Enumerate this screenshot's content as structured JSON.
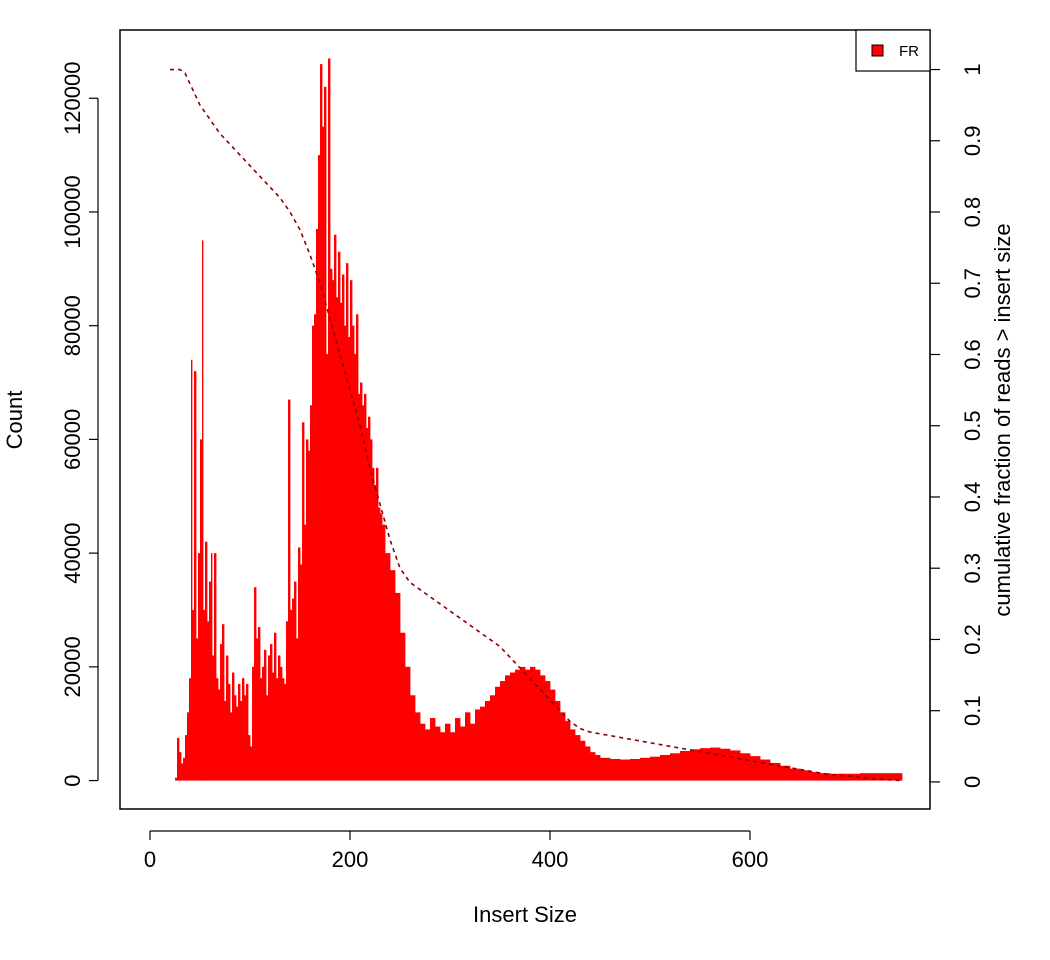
{
  "chart_data": {
    "type": "bar",
    "xlabel": "Insert Size",
    "ylabel": "Count",
    "y2label": "cumulative fraction of reads > insert size",
    "xlim": [
      -30,
      780
    ],
    "ylim": [
      -5000,
      132000
    ],
    "y2lim": [
      -0.038,
      1.0555
    ],
    "xticks": [
      0,
      200,
      400,
      600
    ],
    "yticks": [
      0,
      20000,
      40000,
      60000,
      80000,
      100000,
      120000
    ],
    "y2ticks": [
      0,
      0.1,
      0.2,
      0.3,
      0.4,
      0.5,
      0.6,
      0.7,
      0.8,
      0.9,
      1
    ],
    "grid": false,
    "legend": {
      "position": "top-right",
      "entries": [
        {
          "label": "FR",
          "color": "#ff0000"
        }
      ]
    },
    "colors": {
      "bars": "#ff0000",
      "cumulative_line": "#8b0000",
      "frame": "#000000"
    },
    "series": [
      {
        "name": "FR",
        "kind": "histogram",
        "points": [
          [
            20,
            0
          ],
          [
            25,
            500
          ],
          [
            27,
            7500
          ],
          [
            29,
            5000
          ],
          [
            31,
            3000
          ],
          [
            33,
            4000
          ],
          [
            35,
            8000
          ],
          [
            37,
            12000
          ],
          [
            39,
            18000
          ],
          [
            41,
            74000
          ],
          [
            42,
            30000
          ],
          [
            44,
            72000
          ],
          [
            46,
            25000
          ],
          [
            48,
            40000
          ],
          [
            50,
            60000
          ],
          [
            52,
            95000
          ],
          [
            53,
            30000
          ],
          [
            55,
            42000
          ],
          [
            57,
            28000
          ],
          [
            59,
            35000
          ],
          [
            61,
            40000
          ],
          [
            62,
            22000
          ],
          [
            64,
            40000
          ],
          [
            66,
            18000
          ],
          [
            68,
            16000
          ],
          [
            70,
            24000
          ],
          [
            72,
            27500
          ],
          [
            74,
            14000
          ],
          [
            76,
            22000
          ],
          [
            78,
            17000
          ],
          [
            80,
            12000
          ],
          [
            82,
            19000
          ],
          [
            84,
            15000
          ],
          [
            86,
            13000
          ],
          [
            88,
            17000
          ],
          [
            90,
            14000
          ],
          [
            92,
            18000
          ],
          [
            94,
            15000
          ],
          [
            96,
            17000
          ],
          [
            98,
            8000
          ],
          [
            100,
            6000
          ],
          [
            102,
            20000
          ],
          [
            104,
            34000
          ],
          [
            106,
            25000
          ],
          [
            108,
            27000
          ],
          [
            110,
            18000
          ],
          [
            112,
            20000
          ],
          [
            114,
            23000
          ],
          [
            116,
            15000
          ],
          [
            118,
            22000
          ],
          [
            120,
            24000
          ],
          [
            122,
            19000
          ],
          [
            124,
            26000
          ],
          [
            126,
            18000
          ],
          [
            128,
            22000
          ],
          [
            130,
            20000
          ],
          [
            132,
            18000
          ],
          [
            134,
            17000
          ],
          [
            136,
            28000
          ],
          [
            138,
            67000
          ],
          [
            140,
            30000
          ],
          [
            142,
            32000
          ],
          [
            144,
            35000
          ],
          [
            146,
            25000
          ],
          [
            148,
            41000
          ],
          [
            150,
            38000
          ],
          [
            152,
            63000
          ],
          [
            154,
            45000
          ],
          [
            156,
            60000
          ],
          [
            158,
            58000
          ],
          [
            160,
            66000
          ],
          [
            162,
            80000
          ],
          [
            164,
            82000
          ],
          [
            166,
            97000
          ],
          [
            168,
            110000
          ],
          [
            170,
            126000
          ],
          [
            172,
            115000
          ],
          [
            174,
            122000
          ],
          [
            176,
            75000
          ],
          [
            178,
            127000
          ],
          [
            180,
            90000
          ],
          [
            182,
            88000
          ],
          [
            184,
            96000
          ],
          [
            186,
            85000
          ],
          [
            188,
            93000
          ],
          [
            190,
            84000
          ],
          [
            192,
            89000
          ],
          [
            194,
            80000
          ],
          [
            196,
            91000
          ],
          [
            198,
            78000
          ],
          [
            200,
            88000
          ],
          [
            202,
            80000
          ],
          [
            204,
            75000
          ],
          [
            206,
            82000
          ],
          [
            208,
            68000
          ],
          [
            210,
            70000
          ],
          [
            212,
            66000
          ],
          [
            214,
            68000
          ],
          [
            216,
            62000
          ],
          [
            218,
            64000
          ],
          [
            220,
            60000
          ],
          [
            222,
            55000
          ],
          [
            224,
            52000
          ],
          [
            226,
            55000
          ],
          [
            228,
            48000
          ],
          [
            230,
            47000
          ],
          [
            232,
            45000
          ],
          [
            235,
            40000
          ],
          [
            240,
            37000
          ],
          [
            245,
            33000
          ],
          [
            250,
            26000
          ],
          [
            255,
            20000
          ],
          [
            260,
            15000
          ],
          [
            265,
            12000
          ],
          [
            270,
            10000
          ],
          [
            275,
            9000
          ],
          [
            280,
            11000
          ],
          [
            285,
            9500
          ],
          [
            290,
            8500
          ],
          [
            295,
            10000
          ],
          [
            300,
            8500
          ],
          [
            305,
            11000
          ],
          [
            310,
            9500
          ],
          [
            315,
            12000
          ],
          [
            320,
            10000
          ],
          [
            325,
            12500
          ],
          [
            330,
            13000
          ],
          [
            335,
            14000
          ],
          [
            340,
            15000
          ],
          [
            345,
            16500
          ],
          [
            350,
            17500
          ],
          [
            355,
            18500
          ],
          [
            360,
            19000
          ],
          [
            365,
            19500
          ],
          [
            370,
            20000
          ],
          [
            375,
            19500
          ],
          [
            380,
            20000
          ],
          [
            385,
            19500
          ],
          [
            390,
            18500
          ],
          [
            395,
            17500
          ],
          [
            400,
            16000
          ],
          [
            405,
            14000
          ],
          [
            410,
            12000
          ],
          [
            415,
            10500
          ],
          [
            420,
            9000
          ],
          [
            425,
            8000
          ],
          [
            430,
            7000
          ],
          [
            435,
            6000
          ],
          [
            440,
            5000
          ],
          [
            445,
            4500
          ],
          [
            450,
            4000
          ],
          [
            460,
            3800
          ],
          [
            470,
            3700
          ],
          [
            480,
            3800
          ],
          [
            490,
            4000
          ],
          [
            500,
            4200
          ],
          [
            510,
            4500
          ],
          [
            520,
            4800
          ],
          [
            530,
            5200
          ],
          [
            540,
            5500
          ],
          [
            550,
            5700
          ],
          [
            560,
            5800
          ],
          [
            570,
            5600
          ],
          [
            580,
            5300
          ],
          [
            590,
            4800
          ],
          [
            600,
            4300
          ],
          [
            610,
            3700
          ],
          [
            620,
            3100
          ],
          [
            630,
            2600
          ],
          [
            640,
            2100
          ],
          [
            650,
            1800
          ],
          [
            660,
            1500
          ],
          [
            670,
            1300
          ],
          [
            680,
            1200
          ],
          [
            690,
            1200
          ],
          [
            700,
            1200
          ],
          [
            710,
            1300
          ],
          [
            720,
            1300
          ],
          [
            730,
            1300
          ],
          [
            740,
            1300
          ],
          [
            750,
            1300
          ]
        ]
      },
      {
        "kind": "cumulative",
        "points": [
          [
            20,
            1.0
          ],
          [
            30,
            1.0
          ],
          [
            35,
            0.995
          ],
          [
            40,
            0.98
          ],
          [
            50,
            0.95
          ],
          [
            60,
            0.93
          ],
          [
            70,
            0.91
          ],
          [
            80,
            0.895
          ],
          [
            90,
            0.88
          ],
          [
            100,
            0.865
          ],
          [
            110,
            0.85
          ],
          [
            120,
            0.835
          ],
          [
            130,
            0.82
          ],
          [
            140,
            0.8
          ],
          [
            150,
            0.775
          ],
          [
            160,
            0.74
          ],
          [
            170,
            0.7
          ],
          [
            180,
            0.65
          ],
          [
            190,
            0.6
          ],
          [
            200,
            0.55
          ],
          [
            210,
            0.5
          ],
          [
            220,
            0.44
          ],
          [
            230,
            0.39
          ],
          [
            240,
            0.34
          ],
          [
            250,
            0.3
          ],
          [
            260,
            0.28
          ],
          [
            270,
            0.27
          ],
          [
            280,
            0.26
          ],
          [
            290,
            0.25
          ],
          [
            300,
            0.24
          ],
          [
            310,
            0.23
          ],
          [
            320,
            0.22
          ],
          [
            330,
            0.21
          ],
          [
            340,
            0.2
          ],
          [
            350,
            0.19
          ],
          [
            360,
            0.175
          ],
          [
            370,
            0.16
          ],
          [
            380,
            0.145
          ],
          [
            390,
            0.13
          ],
          [
            400,
            0.115
          ],
          [
            410,
            0.1
          ],
          [
            420,
            0.085
          ],
          [
            430,
            0.075
          ],
          [
            440,
            0.07
          ],
          [
            460,
            0.065
          ],
          [
            480,
            0.06
          ],
          [
            500,
            0.055
          ],
          [
            520,
            0.05
          ],
          [
            540,
            0.045
          ],
          [
            560,
            0.04
          ],
          [
            580,
            0.035
          ],
          [
            600,
            0.03
          ],
          [
            620,
            0.025
          ],
          [
            640,
            0.02
          ],
          [
            660,
            0.015
          ],
          [
            680,
            0.01
          ],
          [
            700,
            0.008
          ],
          [
            720,
            0.005
          ],
          [
            750,
            0.002
          ]
        ]
      }
    ]
  }
}
